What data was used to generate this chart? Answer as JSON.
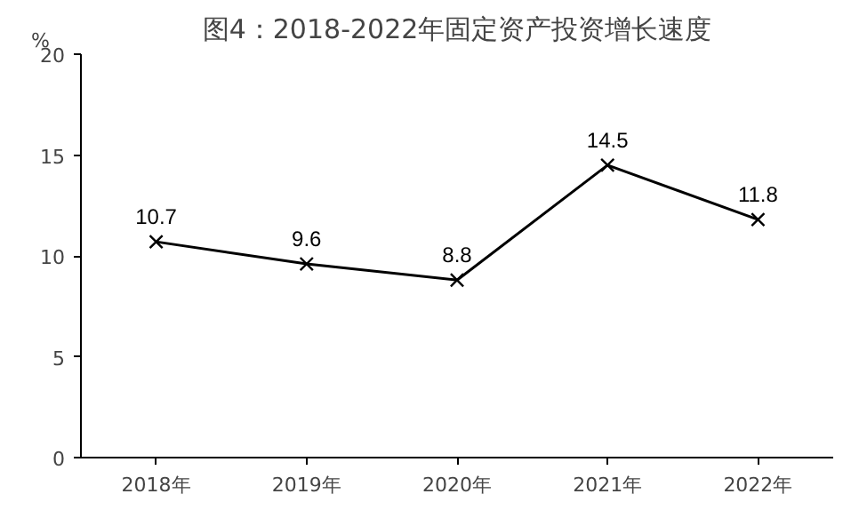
{
  "chart_data": {
    "type": "line",
    "title": "图4：2018-2022年固定资产投资增长速度",
    "ylabel": "%",
    "categories": [
      "2018年",
      "2019年",
      "2020年",
      "2021年",
      "2022年"
    ],
    "series": [
      {
        "color": "#000000",
        "values": [
          10.7,
          9.6,
          8.8,
          14.5,
          11.8
        ]
      }
    ],
    "ylim": [
      0,
      20
    ],
    "yticks": [
      0,
      5,
      10,
      15,
      20
    ],
    "grid": false,
    "marker": "cross",
    "line_style": "solid",
    "data_labels": true
  }
}
